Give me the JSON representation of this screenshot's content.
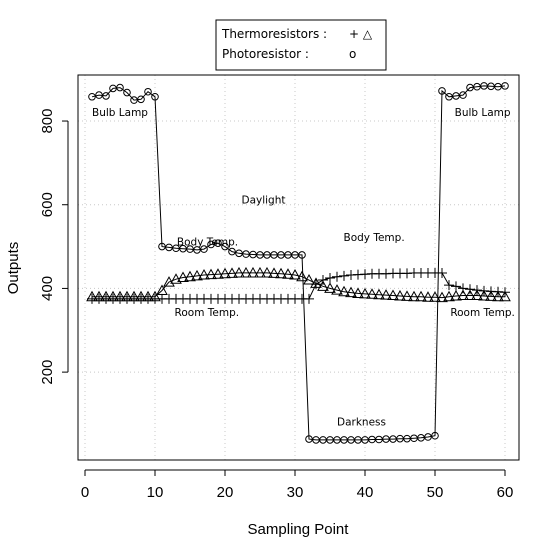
{
  "chart_data": {
    "type": "scatter",
    "xlabel": "Sampling Point",
    "ylabel": "Outputs",
    "xlim": [
      -1,
      62
    ],
    "ylim": [
      -10,
      910
    ],
    "x_ticks": [
      0,
      10,
      20,
      30,
      40,
      50,
      60
    ],
    "y_ticks": [
      200,
      400,
      600,
      800
    ],
    "grid": true,
    "legend": {
      "position": "top-center",
      "rows": [
        {
          "label": "Thermoresistors :",
          "symbols": "+  △"
        },
        {
          "label": "Photoresistor     :",
          "symbols": "o"
        }
      ]
    },
    "series": [
      {
        "name": "Photoresistor",
        "marker": "circle",
        "x": [
          1,
          2,
          3,
          4,
          5,
          6,
          7,
          8,
          9,
          10,
          11,
          12,
          13,
          14,
          15,
          16,
          17,
          18,
          19,
          20,
          21,
          22,
          23,
          24,
          25,
          26,
          27,
          28,
          29,
          30,
          31,
          32,
          33,
          34,
          35,
          36,
          37,
          38,
          39,
          40,
          41,
          42,
          43,
          44,
          45,
          46,
          47,
          48,
          49,
          50,
          51,
          52,
          53,
          54,
          55,
          56,
          57,
          58,
          59,
          60
        ],
        "y": [
          858,
          862,
          860,
          878,
          880,
          868,
          850,
          852,
          870,
          858,
          500,
          498,
          496,
          495,
          494,
          492,
          494,
          505,
          508,
          500,
          488,
          484,
          482,
          481,
          480,
          480,
          480,
          480,
          480,
          480,
          480,
          40,
          38,
          38,
          38,
          38,
          38,
          38,
          38,
          38,
          39,
          39,
          40,
          40,
          41,
          41,
          42,
          43,
          45,
          48,
          872,
          858,
          860,
          862,
          880,
          882,
          884,
          883,
          882,
          884
        ]
      },
      {
        "name": "Thermoresistor (+)",
        "marker": "plus",
        "x": [
          1,
          2,
          3,
          4,
          5,
          6,
          7,
          8,
          9,
          10,
          11,
          12,
          13,
          14,
          15,
          16,
          17,
          18,
          19,
          20,
          21,
          22,
          23,
          24,
          25,
          26,
          27,
          28,
          29,
          30,
          31,
          32,
          33,
          34,
          35,
          36,
          37,
          38,
          39,
          40,
          41,
          42,
          43,
          44,
          45,
          46,
          47,
          48,
          49,
          50,
          51,
          52,
          53,
          54,
          55,
          56,
          57,
          58,
          59,
          60
        ],
        "y": [
          375,
          375,
          375,
          375,
          375,
          375,
          375,
          375,
          375,
          375,
          375,
          375,
          375,
          375,
          375,
          375,
          375,
          375,
          375,
          375,
          375,
          375,
          375,
          375,
          375,
          375,
          375,
          375,
          375,
          375,
          375,
          375,
          410,
          420,
          425,
          428,
          430,
          432,
          433,
          434,
          435,
          435,
          435,
          436,
          436,
          436,
          437,
          437,
          437,
          437,
          437,
          408,
          405,
          400,
          398,
          396,
          394,
          393,
          392,
          391
        ]
      },
      {
        "name": "Thermoresistor (△)",
        "marker": "triangle",
        "x": [
          1,
          2,
          3,
          4,
          5,
          6,
          7,
          8,
          9,
          10,
          11,
          12,
          13,
          14,
          15,
          16,
          17,
          18,
          19,
          20,
          21,
          22,
          23,
          24,
          25,
          26,
          27,
          28,
          29,
          30,
          31,
          32,
          33,
          34,
          35,
          36,
          37,
          38,
          39,
          40,
          41,
          42,
          43,
          44,
          45,
          46,
          47,
          48,
          49,
          50,
          51,
          52,
          53,
          54,
          55,
          56,
          57,
          58,
          59,
          60
        ],
        "y": [
          380,
          380,
          380,
          380,
          380,
          380,
          380,
          380,
          380,
          380,
          395,
          415,
          422,
          426,
          428,
          430,
          432,
          433,
          434,
          435,
          436,
          437,
          437,
          437,
          437,
          437,
          436,
          435,
          434,
          432,
          428,
          420,
          412,
          405,
          400,
          396,
          392,
          390,
          388,
          387,
          386,
          385,
          384,
          383,
          382,
          381,
          380,
          380,
          379,
          379,
          378,
          380,
          382,
          383,
          383,
          383,
          382,
          381,
          380,
          380
        ]
      }
    ],
    "annotations": [
      {
        "text": "Bulb Lamp",
        "x": 5,
        "y": 812
      },
      {
        "text": "Bulb Lamp",
        "x": 56.8,
        "y": 812
      },
      {
        "text": "Daylight",
        "x": 25.5,
        "y": 603
      },
      {
        "text": "Body Temp.",
        "x": 17.5,
        "y": 503
      },
      {
        "text": "Body Temp.",
        "x": 41.3,
        "y": 513
      },
      {
        "text": "Room Temp.",
        "x": 17.4,
        "y": 334
      },
      {
        "text": "Room Temp.",
        "x": 56.8,
        "y": 334
      },
      {
        "text": "Darkness",
        "x": 39.5,
        "y": 73
      }
    ]
  }
}
